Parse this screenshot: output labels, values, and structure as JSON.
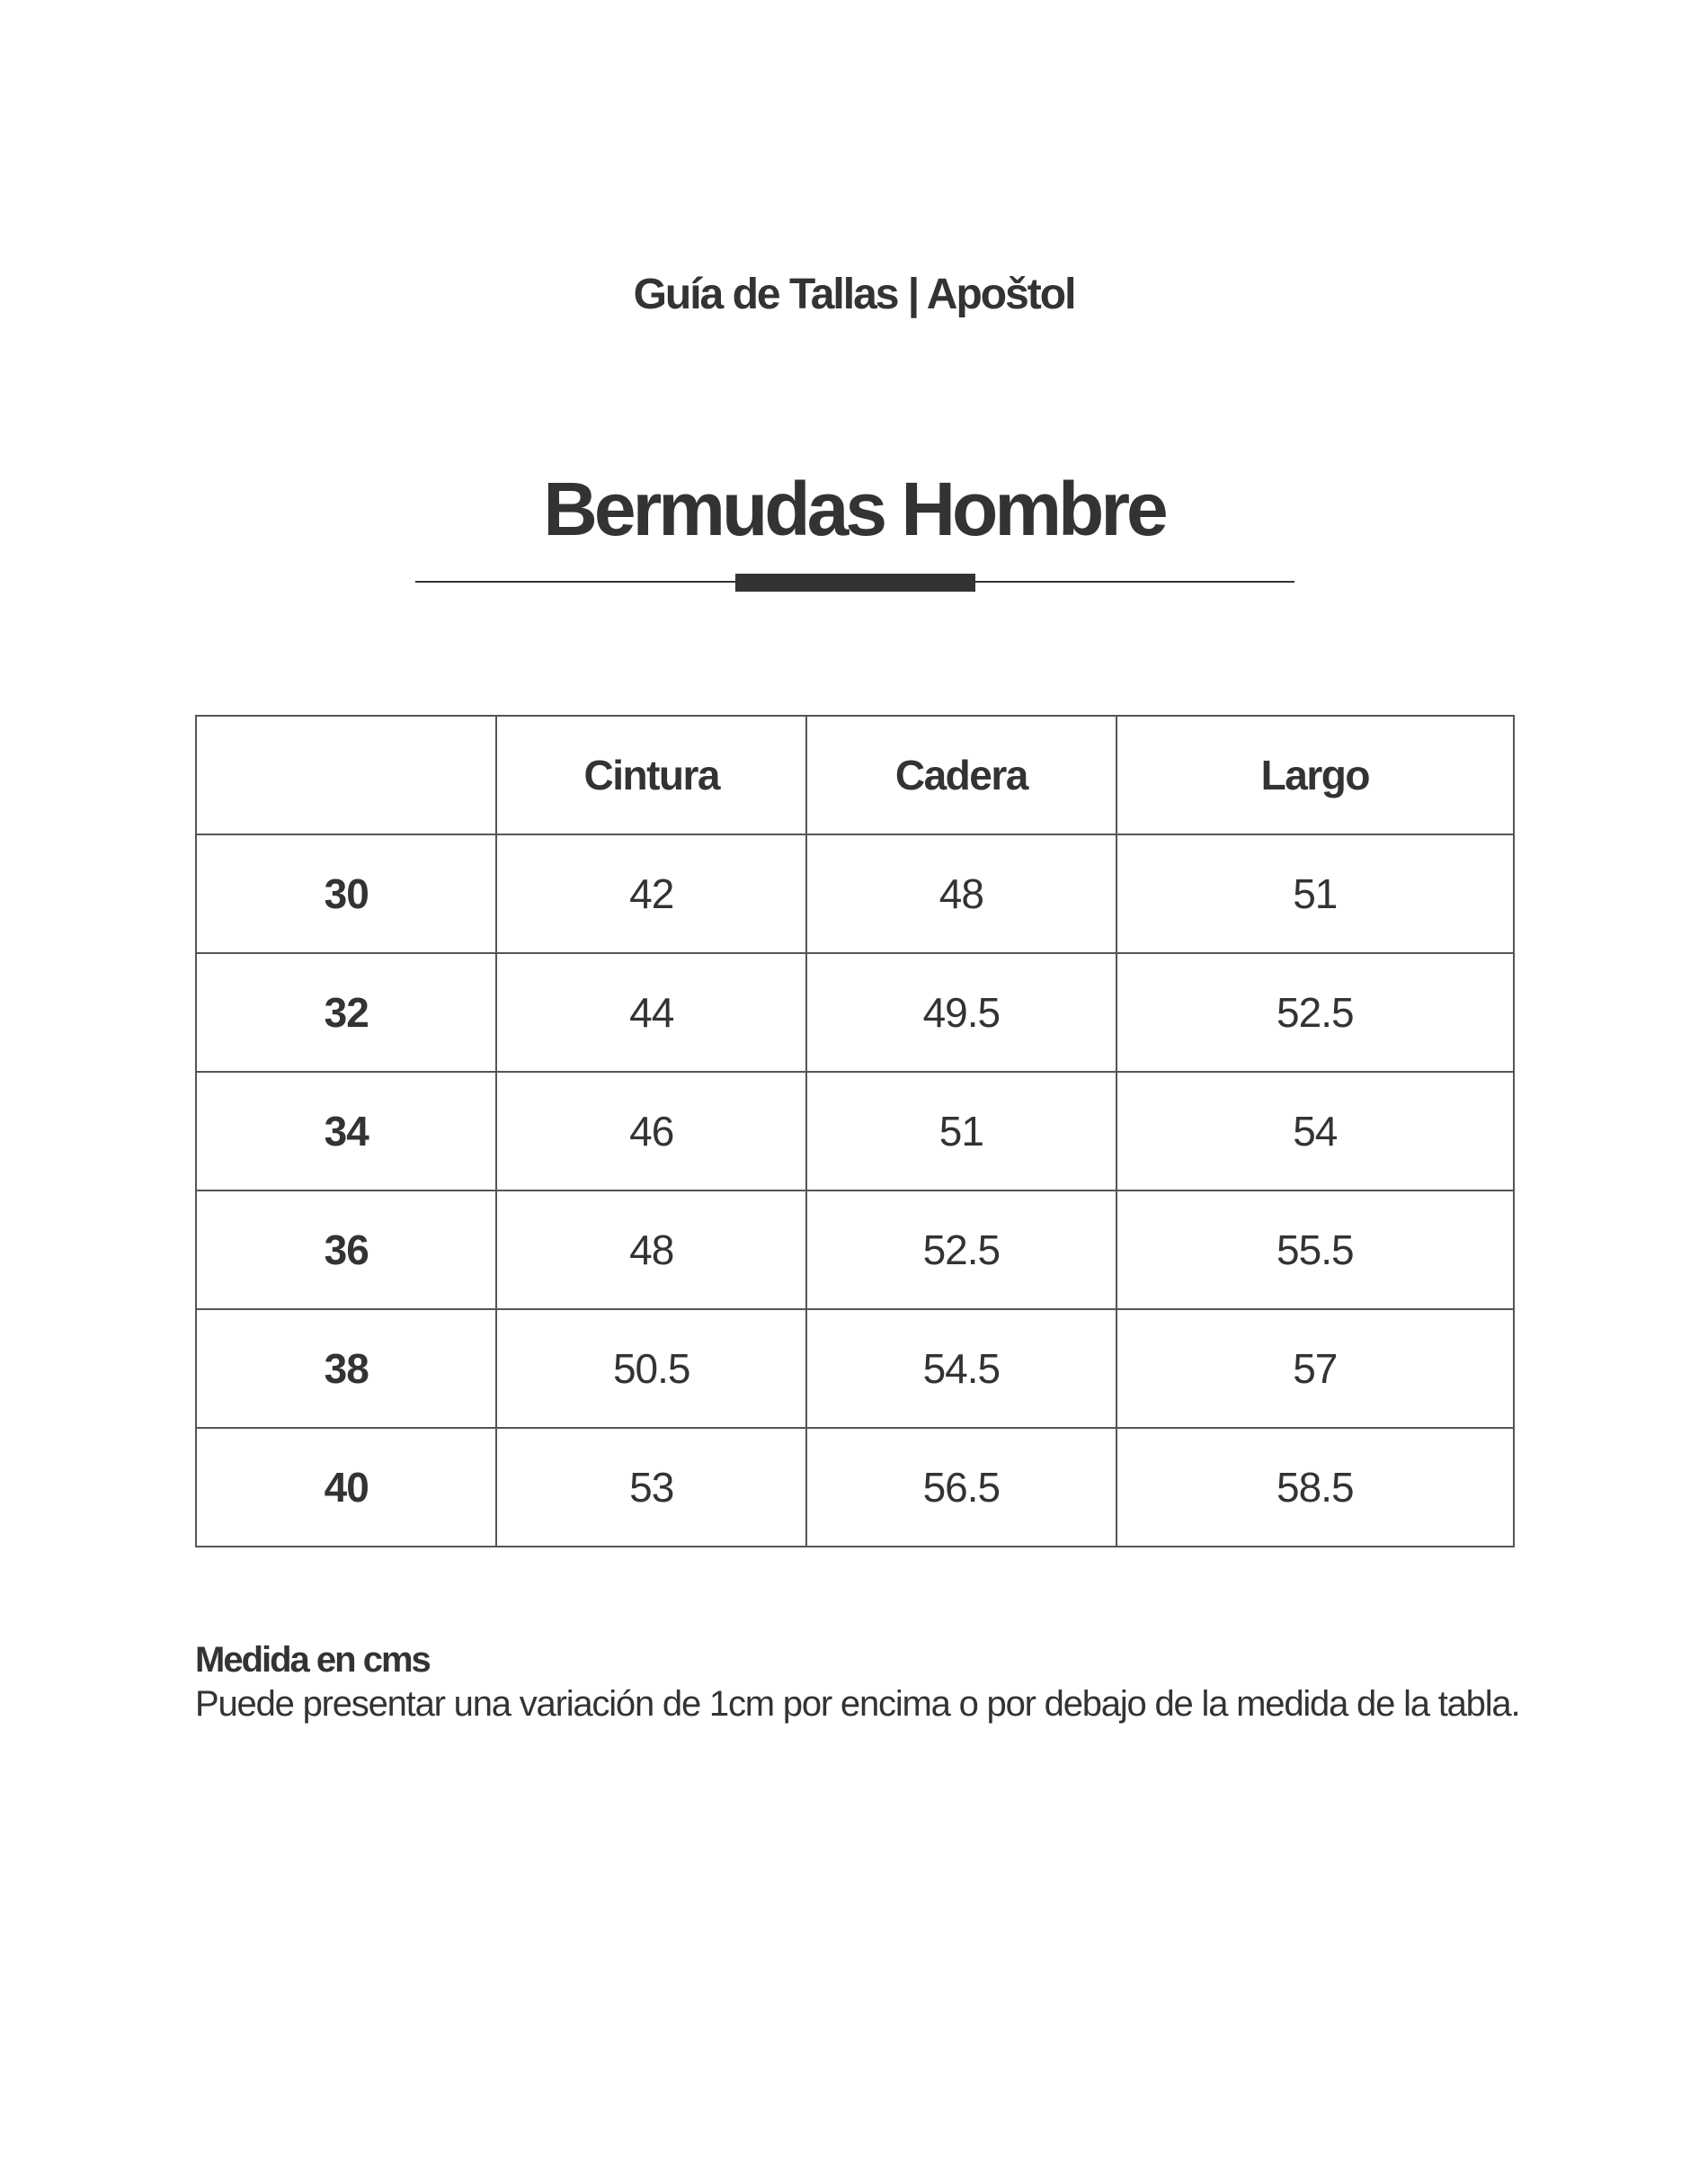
{
  "brand_title": "Guía de Tallas | Apoštol",
  "title": "Bermudas Hombre",
  "table": {
    "headers": [
      "",
      "Cintura",
      "Cadera",
      "Largo"
    ],
    "rows": [
      {
        "size": "30",
        "values": [
          "42",
          "48",
          "51"
        ]
      },
      {
        "size": "32",
        "values": [
          "44",
          "49.5",
          "52.5"
        ]
      },
      {
        "size": "34",
        "values": [
          "46",
          "51",
          "54"
        ]
      },
      {
        "size": "36",
        "values": [
          "48",
          "52.5",
          "55.5"
        ]
      },
      {
        "size": "38",
        "values": [
          "50.5",
          "54.5",
          "57"
        ]
      },
      {
        "size": "40",
        "values": [
          "53",
          "56.5",
          "58.5"
        ]
      }
    ]
  },
  "note": {
    "heading": "Medida en cms",
    "text": "Puede presentar una variación de 1cm por encima o por debajo de la medida de la tabla."
  },
  "colors": {
    "text": "#333333",
    "border": "#555555"
  }
}
